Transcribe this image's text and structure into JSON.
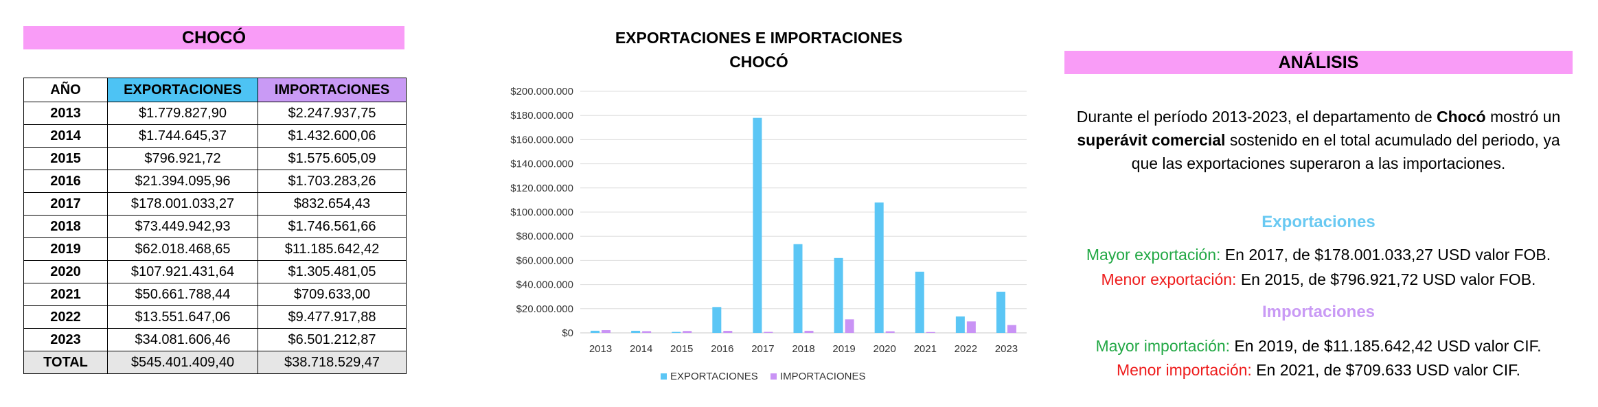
{
  "region_title": "CHOCÓ",
  "table": {
    "headers": [
      "AÑO",
      "EXPORTACIONES",
      "IMPORTACIONES"
    ],
    "rows": [
      [
        "2013",
        "$1.779.827,90",
        "$2.247.937,75"
      ],
      [
        "2014",
        "$1.744.645,37",
        "$1.432.600,06"
      ],
      [
        "2015",
        "$796.921,72",
        "$1.575.605,09"
      ],
      [
        "2016",
        "$21.394.095,96",
        "$1.703.283,26"
      ],
      [
        "2017",
        "$178.001.033,27",
        "$832.654,43"
      ],
      [
        "2018",
        "$73.449.942,93",
        "$1.746.561,66"
      ],
      [
        "2019",
        "$62.018.468,65",
        "$11.185.642,42"
      ],
      [
        "2020",
        "$107.921.431,64",
        "$1.305.481,05"
      ],
      [
        "2021",
        "$50.661.788,44",
        "$709.633,00"
      ],
      [
        "2022",
        "$13.551.647,06",
        "$9.477.917,88"
      ],
      [
        "2023",
        "$34.081.606,46",
        "$6.501.212,87"
      ]
    ],
    "total": [
      "TOTAL",
      "$545.401.409,40",
      "$38.718.529,47"
    ]
  },
  "chart_data": {
    "type": "bar",
    "title_line1": "EXPORTACIONES E IMPORTACIONES",
    "title_line2": "CHOCÓ",
    "categories": [
      "2013",
      "2014",
      "2015",
      "2016",
      "2017",
      "2018",
      "2019",
      "2020",
      "2021",
      "2022",
      "2023"
    ],
    "series": [
      {
        "name": "EXPORTACIONES",
        "color": "#5bc6f5",
        "values": [
          1779827.9,
          1744645.37,
          796921.72,
          21394095.96,
          178001033.27,
          73449942.93,
          62018468.65,
          107921431.64,
          50661788.44,
          13551647.06,
          34081606.46
        ]
      },
      {
        "name": "IMPORTACIONES",
        "color": "#c993f5",
        "values": [
          2247937.75,
          1432600.06,
          1575605.09,
          1703283.26,
          832654.43,
          1746561.66,
          11185642.42,
          1305481.05,
          709633.0,
          9477917.88,
          6501212.87
        ]
      }
    ],
    "ylim": [
      0,
      200000000
    ],
    "yticks": [
      "$0",
      "$20.000.000",
      "$40.000.000",
      "$60.000.000",
      "$80.000.000",
      "$100.000.000",
      "$120.000.000",
      "$140.000.000",
      "$160.000.000",
      "$180.000.000",
      "$200.000.000"
    ],
    "grid": true,
    "legend": "bottom"
  },
  "analysis": {
    "title": "ANÁLISIS",
    "p_part1": "Durante el período 2013-2023, el departamento de ",
    "p_bold1": "Chocó",
    "p_part2": " mostró un ",
    "p_bold2": "superávit comercial",
    "p_part3": " sostenido en el total acumulado del periodo, ya que las exportaciones superaron a las importaciones.",
    "exp_heading": "Exportaciones",
    "exp_max_label": "Mayor exportación:",
    "exp_max_text": " En 2017, de $178.001.033,27 USD valor FOB.",
    "exp_min_label": "Menor exportación:",
    "exp_min_text": " En 2015, de $796.921,72 USD valor FOB.",
    "imp_heading": "Importaciones",
    "imp_max_label": "Mayor importación:",
    "imp_max_text": " En 2019, de $11.185.642,42 USD valor CIF.",
    "imp_min_label": "Menor importación:",
    "imp_min_text": " En 2021, de $709.633 USD valor CIF."
  }
}
